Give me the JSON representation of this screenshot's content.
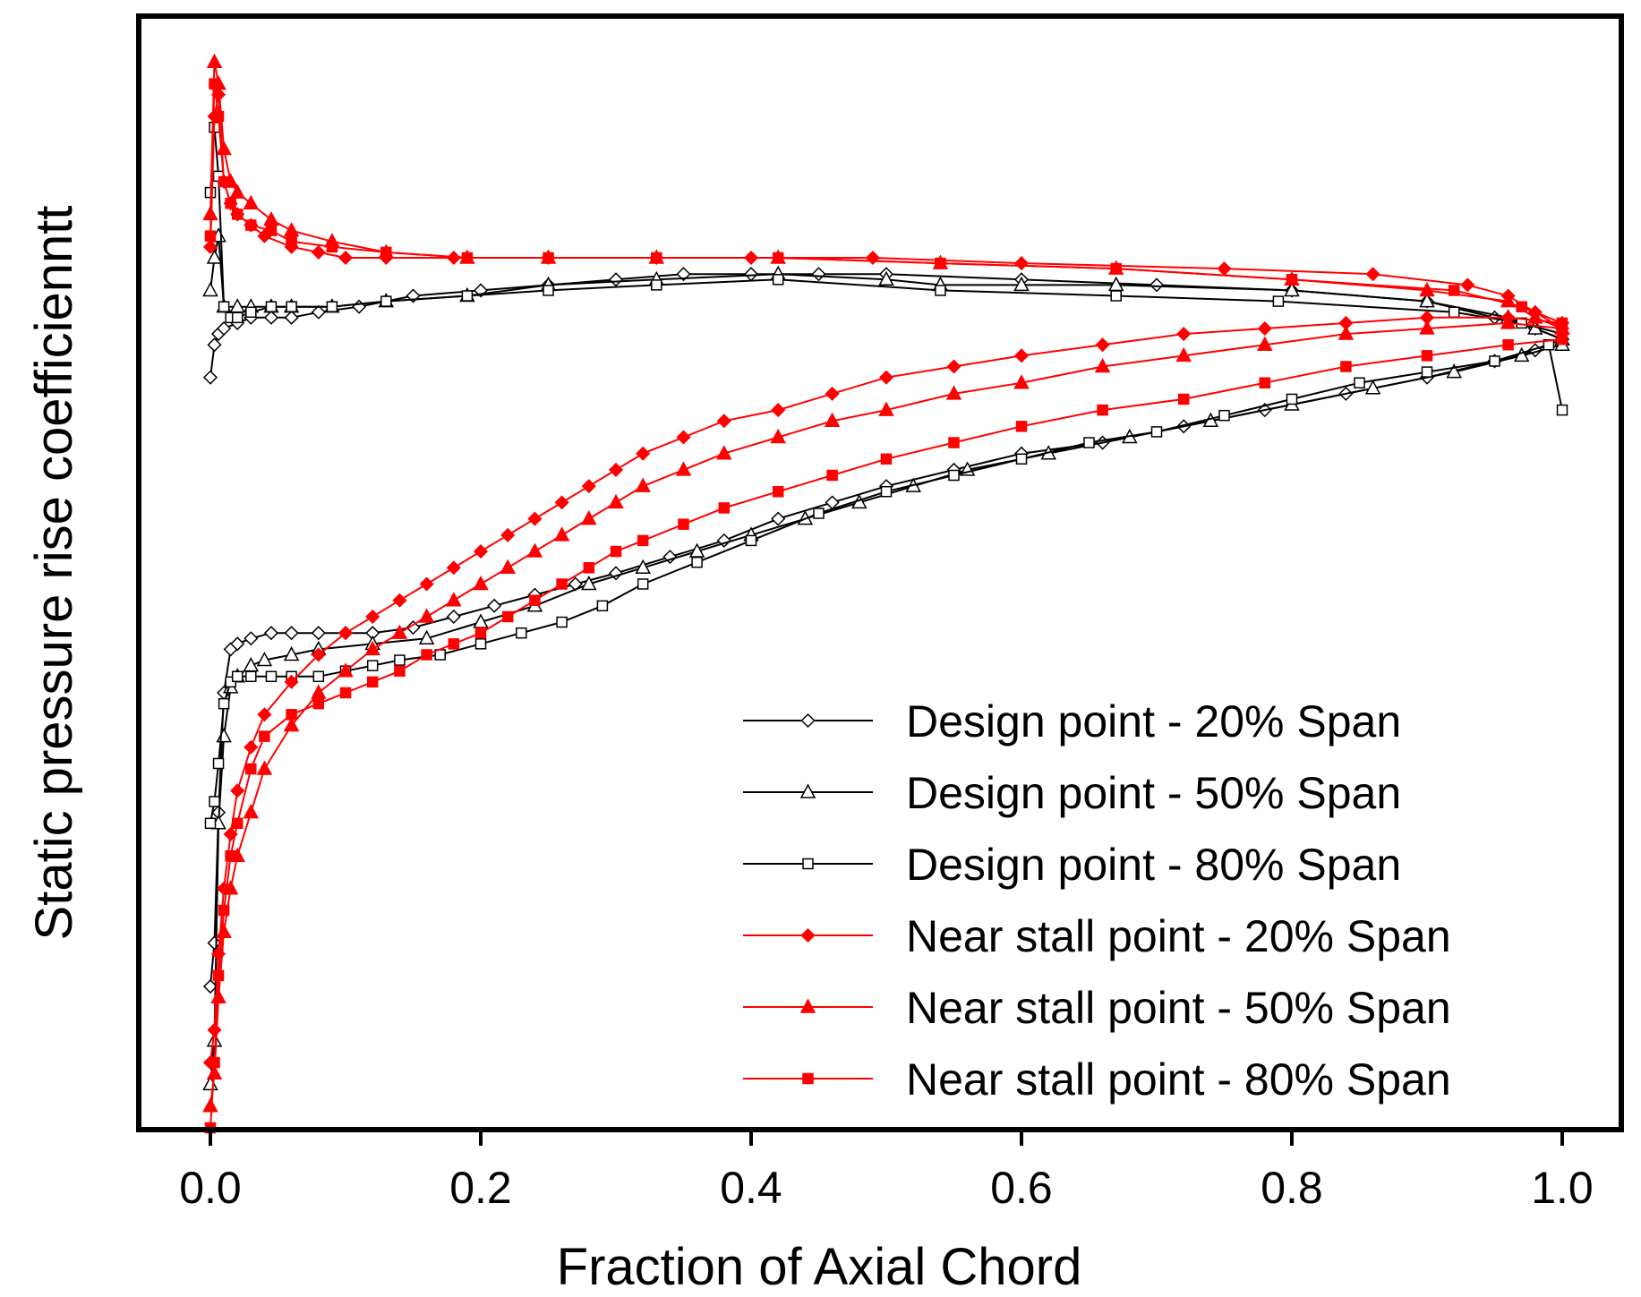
{
  "chart_data": {
    "type": "line",
    "title": "",
    "xlabel": "Fraction of Axial Chord",
    "ylabel": "Static pressure rise coefficienntt",
    "xlim": [
      -0.1,
      1.05
    ],
    "ylim": [
      0,
      1
    ],
    "x_ticks": [
      "0.0",
      "0.2",
      "0.4",
      "0.6",
      "0.8",
      "1.0"
    ],
    "x_tick_values": [
      0,
      0.2,
      0.4,
      0.6,
      0.8,
      1.0
    ],
    "y_ticks_shown": false,
    "grid": false,
    "legend_position": "bottom-right",
    "series": [
      {
        "name": "Design point - 20% Span",
        "color": "#000000",
        "marker": "diamond-open",
        "pressure_x": [
          0,
          0.003,
          0.006,
          0.01,
          0.02,
          0.03,
          0.045,
          0.06,
          0.08,
          0.11,
          0.15,
          0.2,
          0.25,
          0.3,
          0.35,
          0.4,
          0.45,
          0.5,
          0.6,
          0.7,
          0.8,
          0.9,
          0.95,
          0.98,
          1.0
        ],
        "pressure_y": [
          0.69,
          0.72,
          0.73,
          0.735,
          0.74,
          0.745,
          0.745,
          0.745,
          0.75,
          0.755,
          0.765,
          0.77,
          0.775,
          0.78,
          0.785,
          0.785,
          0.785,
          0.785,
          0.78,
          0.775,
          0.77,
          0.76,
          0.745,
          0.735,
          0.725
        ],
        "suction_x": [
          0,
          0.003,
          0.006,
          0.01,
          0.015,
          0.02,
          0.03,
          0.045,
          0.06,
          0.08,
          0.1,
          0.12,
          0.15,
          0.18,
          0.21,
          0.24,
          0.27,
          0.3,
          0.34,
          0.38,
          0.42,
          0.46,
          0.5,
          0.55,
          0.6,
          0.66,
          0.72,
          0.78,
          0.84,
          0.9,
          0.95,
          0.98,
          1.0
        ],
        "suction_y": [
          0.13,
          0.17,
          0.29,
          0.4,
          0.44,
          0.445,
          0.45,
          0.455,
          0.455,
          0.455,
          0.455,
          0.455,
          0.46,
          0.47,
          0.48,
          0.49,
          0.5,
          0.51,
          0.525,
          0.54,
          0.56,
          0.575,
          0.59,
          0.605,
          0.62,
          0.63,
          0.645,
          0.66,
          0.675,
          0.69,
          0.705,
          0.715,
          0.725
        ]
      },
      {
        "name": "Design point - 50% Span",
        "color": "#000000",
        "marker": "triangle-open",
        "pressure_x": [
          0,
          0.003,
          0.006,
          0.01,
          0.02,
          0.03,
          0.045,
          0.06,
          0.09,
          0.13,
          0.19,
          0.25,
          0.33,
          0.42,
          0.5,
          0.54,
          0.6,
          0.67,
          0.8,
          0.9,
          0.96,
          0.98,
          1.0
        ],
        "pressure_y": [
          0.77,
          0.8,
          0.82,
          0.755,
          0.755,
          0.755,
          0.755,
          0.755,
          0.755,
          0.76,
          0.765,
          0.775,
          0.78,
          0.785,
          0.78,
          0.775,
          0.775,
          0.775,
          0.77,
          0.76,
          0.745,
          0.735,
          0.725
        ],
        "suction_x": [
          0,
          0.003,
          0.006,
          0.01,
          0.015,
          0.02,
          0.03,
          0.04,
          0.06,
          0.08,
          0.12,
          0.16,
          0.2,
          0.24,
          0.28,
          0.32,
          0.36,
          0.4,
          0.44,
          0.48,
          0.52,
          0.56,
          0.62,
          0.68,
          0.74,
          0.8,
          0.86,
          0.92,
          0.97,
          1.0
        ],
        "suction_y": [
          0.04,
          0.08,
          0.28,
          0.36,
          0.405,
          0.415,
          0.425,
          0.43,
          0.435,
          0.44,
          0.445,
          0.45,
          0.465,
          0.48,
          0.5,
          0.515,
          0.53,
          0.545,
          0.56,
          0.575,
          0.59,
          0.605,
          0.62,
          0.635,
          0.65,
          0.665,
          0.68,
          0.695,
          0.71,
          0.72
        ]
      },
      {
        "name": "Design point - 80% Span",
        "color": "#000000",
        "marker": "square-open",
        "pressure_x": [
          0,
          0.003,
          0.006,
          0.01,
          0.015,
          0.02,
          0.03,
          0.045,
          0.06,
          0.09,
          0.13,
          0.19,
          0.25,
          0.33,
          0.42,
          0.54,
          0.67,
          0.79,
          0.92,
          0.97,
          1.0
        ],
        "pressure_y": [
          0.86,
          0.92,
          0.875,
          0.755,
          0.745,
          0.745,
          0.75,
          0.755,
          0.755,
          0.755,
          0.76,
          0.765,
          0.77,
          0.775,
          0.78,
          0.77,
          0.765,
          0.76,
          0.75,
          0.74,
          0.73
        ],
        "suction_x": [
          0,
          0.003,
          0.006,
          0.01,
          0.015,
          0.02,
          0.03,
          0.045,
          0.06,
          0.08,
          0.1,
          0.12,
          0.14,
          0.17,
          0.2,
          0.23,
          0.26,
          0.29,
          0.32,
          0.36,
          0.4,
          0.45,
          0.5,
          0.55,
          0.6,
          0.65,
          0.7,
          0.75,
          0.8,
          0.85,
          0.9,
          0.95,
          0.99,
          1.0
        ],
        "suction_y": [
          0.28,
          0.3,
          0.335,
          0.39,
          0.41,
          0.415,
          0.415,
          0.415,
          0.415,
          0.415,
          0.42,
          0.425,
          0.43,
          0.435,
          0.445,
          0.455,
          0.465,
          0.48,
          0.5,
          0.52,
          0.54,
          0.565,
          0.585,
          0.6,
          0.615,
          0.63,
          0.64,
          0.655,
          0.67,
          0.685,
          0.695,
          0.705,
          0.72,
          0.66
        ]
      },
      {
        "name": "Near stall point - 20% Span",
        "color": "#ff0000",
        "marker": "diamond-filled",
        "pressure_x": [
          0,
          0.003,
          0.006,
          0.01,
          0.015,
          0.02,
          0.03,
          0.04,
          0.06,
          0.08,
          0.1,
          0.13,
          0.18,
          0.25,
          0.33,
          0.4,
          0.49,
          0.6,
          0.75,
          0.86,
          0.93,
          0.96,
          0.98,
          1.0
        ],
        "pressure_y": [
          0.81,
          0.93,
          0.95,
          0.87,
          0.85,
          0.84,
          0.83,
          0.82,
          0.81,
          0.805,
          0.8,
          0.8,
          0.8,
          0.8,
          0.8,
          0.8,
          0.8,
          0.795,
          0.79,
          0.785,
          0.775,
          0.765,
          0.75,
          0.735
        ],
        "suction_x": [
          0,
          0.003,
          0.006,
          0.01,
          0.015,
          0.02,
          0.03,
          0.04,
          0.06,
          0.08,
          0.1,
          0.12,
          0.14,
          0.16,
          0.18,
          0.2,
          0.22,
          0.24,
          0.26,
          0.28,
          0.3,
          0.32,
          0.35,
          0.38,
          0.42,
          0.46,
          0.5,
          0.55,
          0.6,
          0.66,
          0.72,
          0.78,
          0.84,
          0.9,
          0.96,
          1.0
        ],
        "suction_y": [
          0.06,
          0.09,
          0.16,
          0.22,
          0.27,
          0.31,
          0.35,
          0.38,
          0.41,
          0.435,
          0.455,
          0.47,
          0.485,
          0.5,
          0.515,
          0.53,
          0.545,
          0.56,
          0.575,
          0.59,
          0.605,
          0.62,
          0.635,
          0.65,
          0.66,
          0.675,
          0.69,
          0.7,
          0.71,
          0.72,
          0.73,
          0.735,
          0.74,
          0.745,
          0.745,
          0.74
        ]
      },
      {
        "name": "Near stall point - 50% Span",
        "color": "#ff0000",
        "marker": "triangle-filled",
        "pressure_x": [
          0,
          0.003,
          0.006,
          0.01,
          0.015,
          0.02,
          0.03,
          0.045,
          0.06,
          0.09,
          0.13,
          0.19,
          0.25,
          0.33,
          0.42,
          0.54,
          0.67,
          0.8,
          0.9,
          0.96,
          0.98,
          1.0
        ],
        "pressure_y": [
          0.84,
          0.98,
          0.96,
          0.9,
          0.87,
          0.86,
          0.85,
          0.835,
          0.825,
          0.815,
          0.805,
          0.8,
          0.8,
          0.8,
          0.8,
          0.795,
          0.79,
          0.78,
          0.77,
          0.76,
          0.745,
          0.735
        ],
        "suction_x": [
          0,
          0.003,
          0.006,
          0.01,
          0.015,
          0.02,
          0.03,
          0.04,
          0.06,
          0.08,
          0.1,
          0.12,
          0.14,
          0.16,
          0.18,
          0.2,
          0.22,
          0.24,
          0.26,
          0.28,
          0.3,
          0.32,
          0.35,
          0.38,
          0.42,
          0.46,
          0.5,
          0.55,
          0.6,
          0.66,
          0.72,
          0.78,
          0.84,
          0.9,
          0.96,
          1.0
        ],
        "suction_y": [
          0.02,
          0.05,
          0.12,
          0.18,
          0.22,
          0.25,
          0.29,
          0.33,
          0.37,
          0.4,
          0.42,
          0.44,
          0.455,
          0.47,
          0.485,
          0.5,
          0.515,
          0.53,
          0.545,
          0.56,
          0.575,
          0.59,
          0.605,
          0.62,
          0.635,
          0.65,
          0.66,
          0.675,
          0.685,
          0.7,
          0.71,
          0.72,
          0.73,
          0.735,
          0.74,
          0.735
        ]
      },
      {
        "name": "Near stall point - 80% Span",
        "color": "#ff0000",
        "marker": "square-filled",
        "pressure_x": [
          0,
          0.003,
          0.006,
          0.01,
          0.015,
          0.02,
          0.03,
          0.045,
          0.06,
          0.09,
          0.13,
          0.19,
          0.25,
          0.33,
          0.42,
          0.54,
          0.67,
          0.8,
          0.92,
          0.97,
          1.0
        ],
        "pressure_y": [
          0.82,
          0.96,
          0.93,
          0.87,
          0.85,
          0.84,
          0.83,
          0.825,
          0.815,
          0.81,
          0.805,
          0.8,
          0.8,
          0.8,
          0.8,
          0.795,
          0.79,
          0.78,
          0.77,
          0.755,
          0.74
        ],
        "suction_x": [
          0,
          0.003,
          0.006,
          0.01,
          0.015,
          0.02,
          0.03,
          0.04,
          0.06,
          0.08,
          0.1,
          0.12,
          0.14,
          0.16,
          0.18,
          0.2,
          0.22,
          0.24,
          0.26,
          0.28,
          0.3,
          0.32,
          0.35,
          0.38,
          0.42,
          0.46,
          0.5,
          0.55,
          0.6,
          0.66,
          0.72,
          0.78,
          0.84,
          0.9,
          0.96,
          1.0
        ],
        "suction_y": [
          0.0,
          0.06,
          0.14,
          0.2,
          0.25,
          0.28,
          0.33,
          0.36,
          0.38,
          0.39,
          0.4,
          0.41,
          0.42,
          0.435,
          0.445,
          0.455,
          0.47,
          0.485,
          0.5,
          0.515,
          0.53,
          0.54,
          0.555,
          0.57,
          0.585,
          0.6,
          0.615,
          0.63,
          0.645,
          0.66,
          0.67,
          0.685,
          0.7,
          0.71,
          0.72,
          0.725
        ]
      }
    ]
  }
}
